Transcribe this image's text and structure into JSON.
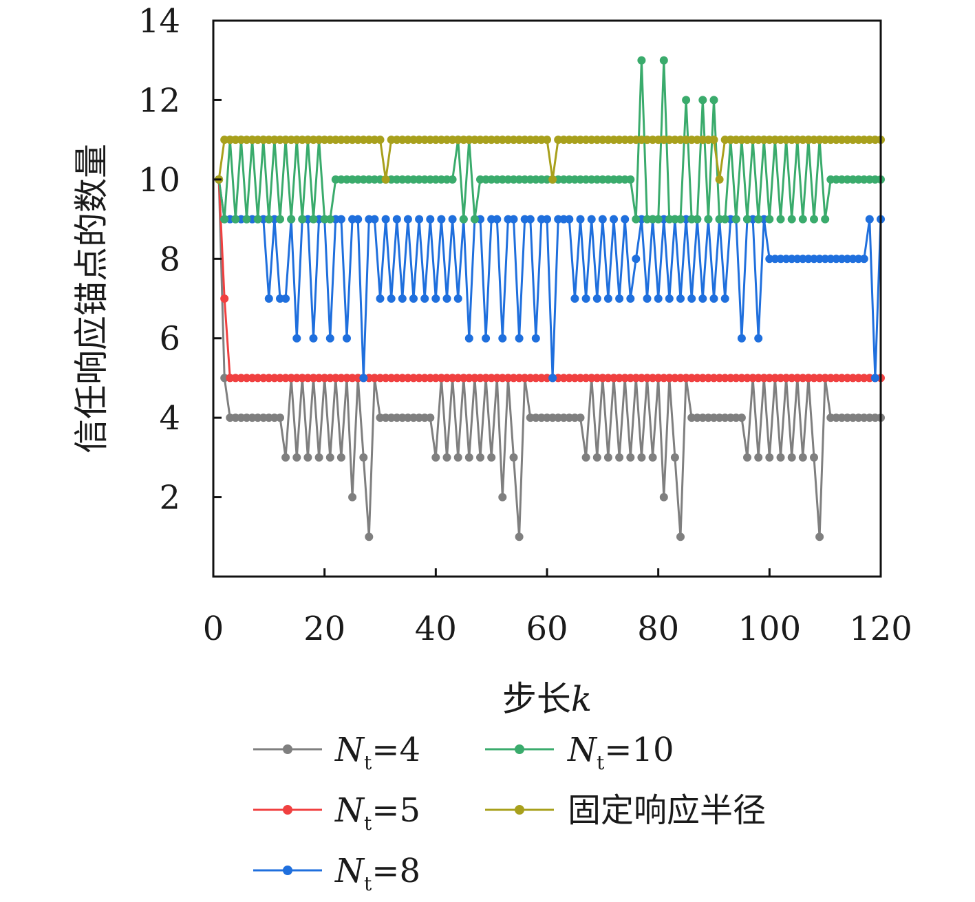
{
  "chart_data": {
    "type": "line",
    "xlabel": "步长",
    "xlabel_var": "k",
    "ylabel": "信任响应锚点的数量",
    "xlim": [
      0,
      120
    ],
    "ylim": [
      0,
      14
    ],
    "x_ticks": [
      0,
      20,
      40,
      60,
      80,
      100,
      120
    ],
    "y_ticks": [
      2,
      4,
      6,
      8,
      10,
      12,
      14
    ],
    "grid": false,
    "legend_position": "bottom",
    "series": [
      {
        "name": "N_t=4",
        "legend": {
          "base": "N",
          "sub": "t",
          "suffix": "=4"
        },
        "color": "#7f7f7f",
        "x": [
          1,
          2,
          3,
          4,
          5,
          6,
          7,
          8,
          9,
          10,
          11,
          12,
          13,
          14,
          15,
          16,
          17,
          18,
          19,
          20,
          21,
          22,
          23,
          24,
          25,
          26,
          27,
          28,
          29,
          30,
          31,
          32,
          33,
          34,
          35,
          36,
          37,
          38,
          39,
          40,
          41,
          42,
          43,
          44,
          45,
          46,
          47,
          48,
          49,
          50,
          51,
          52,
          53,
          54,
          55,
          56,
          57,
          58,
          59,
          60,
          61,
          62,
          63,
          64,
          65,
          66,
          67,
          68,
          69,
          70,
          71,
          72,
          73,
          74,
          75,
          76,
          77,
          78,
          79,
          80,
          81,
          82,
          83,
          84,
          85,
          86,
          87,
          88,
          89,
          90,
          91,
          92,
          93,
          94,
          95,
          96,
          97,
          98,
          99,
          100,
          101,
          102,
          103,
          104,
          105,
          106,
          107,
          108,
          109,
          110,
          111,
          112,
          113,
          114,
          115,
          116,
          117,
          118,
          119,
          120
        ],
        "values": [
          10,
          5,
          4,
          4,
          4,
          4,
          4,
          4,
          4,
          4,
          4,
          4,
          3,
          5,
          3,
          5,
          3,
          5,
          3,
          5,
          3,
          5,
          3,
          5,
          2,
          5,
          3,
          1,
          5,
          4,
          4,
          4,
          4,
          4,
          4,
          4,
          4,
          4,
          4,
          3,
          5,
          3,
          5,
          3,
          5,
          3,
          5,
          3,
          5,
          3,
          5,
          2,
          5,
          3,
          1,
          5,
          4,
          4,
          4,
          4,
          4,
          4,
          4,
          4,
          4,
          4,
          3,
          5,
          3,
          5,
          3,
          5,
          3,
          5,
          3,
          5,
          3,
          5,
          3,
          5,
          2,
          5,
          3,
          1,
          5,
          4,
          4,
          4,
          4,
          4,
          4,
          4,
          4,
          4,
          4,
          3,
          5,
          3,
          5,
          3,
          5,
          3,
          5,
          3,
          5,
          3,
          5,
          3,
          1,
          5,
          4,
          4,
          4,
          4,
          4,
          4,
          4,
          4,
          4,
          4
        ]
      },
      {
        "name": "N_t=5",
        "legend": {
          "base": "N",
          "sub": "t",
          "suffix": "=5"
        },
        "color": "#f04040",
        "x": [
          1,
          2,
          3,
          4,
          5,
          6,
          7,
          8,
          9,
          10,
          11,
          12,
          13,
          14,
          15,
          16,
          17,
          18,
          19,
          20,
          21,
          22,
          23,
          24,
          25,
          26,
          27,
          28,
          29,
          30,
          31,
          32,
          33,
          34,
          35,
          36,
          37,
          38,
          39,
          40,
          41,
          42,
          43,
          44,
          45,
          46,
          47,
          48,
          49,
          50,
          51,
          52,
          53,
          54,
          55,
          56,
          57,
          58,
          59,
          60,
          61,
          62,
          63,
          64,
          65,
          66,
          67,
          68,
          69,
          70,
          71,
          72,
          73,
          74,
          75,
          76,
          77,
          78,
          79,
          80,
          81,
          82,
          83,
          84,
          85,
          86,
          87,
          88,
          89,
          90,
          91,
          92,
          93,
          94,
          95,
          96,
          97,
          98,
          99,
          100,
          101,
          102,
          103,
          104,
          105,
          106,
          107,
          108,
          109,
          110,
          111,
          112,
          113,
          114,
          115,
          116,
          117,
          118,
          119,
          120
        ],
        "values": [
          10,
          7,
          5,
          5,
          5,
          5,
          5,
          5,
          5,
          5,
          5,
          5,
          5,
          5,
          5,
          5,
          5,
          5,
          5,
          5,
          5,
          5,
          5,
          5,
          5,
          5,
          5,
          5,
          5,
          5,
          5,
          5,
          5,
          5,
          5,
          5,
          5,
          5,
          5,
          5,
          5,
          5,
          5,
          5,
          5,
          5,
          5,
          5,
          5,
          5,
          5,
          5,
          5,
          5,
          5,
          5,
          5,
          5,
          5,
          5,
          5,
          5,
          5,
          5,
          5,
          5,
          5,
          5,
          5,
          5,
          5,
          5,
          5,
          5,
          5,
          5,
          5,
          5,
          5,
          5,
          5,
          5,
          5,
          5,
          5,
          5,
          5,
          5,
          5,
          5,
          5,
          5,
          5,
          5,
          5,
          5,
          5,
          5,
          5,
          5,
          5,
          5,
          5,
          5,
          5,
          5,
          5,
          5,
          5,
          5,
          5,
          5,
          5,
          5,
          5,
          5,
          5,
          5,
          5,
          5
        ]
      },
      {
        "name": "N_t=8",
        "legend": {
          "base": "N",
          "sub": "t",
          "suffix": "=8"
        },
        "color": "#1f6fdd",
        "x": [
          1,
          2,
          3,
          4,
          5,
          6,
          7,
          8,
          9,
          10,
          11,
          12,
          13,
          14,
          15,
          16,
          17,
          18,
          19,
          20,
          21,
          22,
          23,
          24,
          25,
          26,
          27,
          28,
          29,
          30,
          31,
          32,
          33,
          34,
          35,
          36,
          37,
          38,
          39,
          40,
          41,
          42,
          43,
          44,
          45,
          46,
          47,
          48,
          49,
          50,
          51,
          52,
          53,
          54,
          55,
          56,
          57,
          58,
          59,
          60,
          61,
          62,
          63,
          64,
          65,
          66,
          67,
          68,
          69,
          70,
          71,
          72,
          73,
          74,
          75,
          76,
          77,
          78,
          79,
          80,
          81,
          82,
          83,
          84,
          85,
          86,
          87,
          88,
          89,
          90,
          91,
          92,
          93,
          94,
          95,
          96,
          97,
          98,
          99,
          100,
          101,
          102,
          103,
          104,
          105,
          106,
          107,
          108,
          109,
          110,
          111,
          112,
          113,
          114,
          115,
          116,
          117,
          118,
          119,
          120
        ],
        "values": [
          10,
          9,
          9,
          9,
          9,
          9,
          9,
          9,
          9,
          7,
          9,
          7,
          7,
          9,
          6,
          9,
          9,
          6,
          9,
          9,
          6,
          9,
          9,
          6,
          9,
          9,
          5,
          9,
          9,
          7,
          9,
          7,
          9,
          7,
          9,
          7,
          9,
          7,
          9,
          7,
          9,
          7,
          9,
          7,
          9,
          6,
          9,
          9,
          6,
          9,
          9,
          6,
          9,
          9,
          6,
          9,
          9,
          6,
          9,
          9,
          5,
          9,
          9,
          9,
          7,
          9,
          7,
          9,
          7,
          9,
          7,
          9,
          7,
          9,
          7,
          8,
          9,
          7,
          9,
          7,
          9,
          7,
          9,
          7,
          9,
          7,
          9,
          7,
          9,
          7,
          9,
          7,
          9,
          9,
          6,
          9,
          9,
          6,
          9,
          8,
          8,
          8,
          8,
          8,
          8,
          8,
          8,
          8,
          8,
          8,
          8,
          8,
          8,
          8,
          8,
          8,
          8,
          9,
          5,
          9
        ]
      },
      {
        "name": "N_t=10",
        "legend": {
          "base": "N",
          "sub": "t",
          "suffix": "=10"
        },
        "color": "#3aab6c",
        "x": [
          1,
          2,
          3,
          4,
          5,
          6,
          7,
          8,
          9,
          10,
          11,
          12,
          13,
          14,
          15,
          16,
          17,
          18,
          19,
          20,
          21,
          22,
          23,
          24,
          25,
          26,
          27,
          28,
          29,
          30,
          31,
          32,
          33,
          34,
          35,
          36,
          37,
          38,
          39,
          40,
          41,
          42,
          43,
          44,
          45,
          46,
          47,
          48,
          49,
          50,
          51,
          52,
          53,
          54,
          55,
          56,
          57,
          58,
          59,
          60,
          61,
          62,
          63,
          64,
          65,
          66,
          67,
          68,
          69,
          70,
          71,
          72,
          73,
          74,
          75,
          76,
          77,
          78,
          79,
          80,
          81,
          82,
          83,
          84,
          85,
          86,
          87,
          88,
          89,
          90,
          91,
          92,
          93,
          94,
          95,
          96,
          97,
          98,
          99,
          100,
          101,
          102,
          103,
          104,
          105,
          106,
          107,
          108,
          109,
          110,
          111,
          112,
          113,
          114,
          115,
          116,
          117,
          118,
          119,
          120
        ],
        "values": [
          10,
          9,
          11,
          9,
          11,
          9,
          11,
          9,
          11,
          9,
          11,
          9,
          11,
          9,
          11,
          9,
          11,
          9,
          11,
          9,
          9,
          10,
          10,
          10,
          10,
          10,
          10,
          10,
          10,
          10,
          10,
          10,
          10,
          10,
          10,
          10,
          10,
          10,
          10,
          10,
          10,
          10,
          10,
          11,
          9,
          11,
          9,
          10,
          10,
          10,
          10,
          10,
          10,
          10,
          10,
          10,
          10,
          10,
          10,
          10,
          10,
          10,
          10,
          10,
          10,
          10,
          10,
          10,
          10,
          10,
          10,
          10,
          10,
          10,
          10,
          9,
          13,
          9,
          9,
          9,
          13,
          9,
          9,
          9,
          12,
          9,
          9,
          12,
          9,
          12,
          9,
          9,
          11,
          9,
          11,
          9,
          11,
          9,
          11,
          9,
          11,
          9,
          11,
          9,
          11,
          9,
          11,
          9,
          11,
          9,
          10,
          10,
          10,
          10,
          10,
          10,
          10,
          10,
          10,
          10
        ]
      },
      {
        "name": "固定响应半径",
        "legend": {
          "base": "固定响应半径",
          "sub": "",
          "suffix": ""
        },
        "color": "#a8a01c",
        "x": [
          1,
          2,
          3,
          4,
          5,
          6,
          7,
          8,
          9,
          10,
          11,
          12,
          13,
          14,
          15,
          16,
          17,
          18,
          19,
          20,
          21,
          22,
          23,
          24,
          25,
          26,
          27,
          28,
          29,
          30,
          31,
          32,
          33,
          34,
          35,
          36,
          37,
          38,
          39,
          40,
          41,
          42,
          43,
          44,
          45,
          46,
          47,
          48,
          49,
          50,
          51,
          52,
          53,
          54,
          55,
          56,
          57,
          58,
          59,
          60,
          61,
          62,
          63,
          64,
          65,
          66,
          67,
          68,
          69,
          70,
          71,
          72,
          73,
          74,
          75,
          76,
          77,
          78,
          79,
          80,
          81,
          82,
          83,
          84,
          85,
          86,
          87,
          88,
          89,
          90,
          91,
          92,
          93,
          94,
          95,
          96,
          97,
          98,
          99,
          100,
          101,
          102,
          103,
          104,
          105,
          106,
          107,
          108,
          109,
          110,
          111,
          112,
          113,
          114,
          115,
          116,
          117,
          118,
          119,
          120
        ],
        "values": [
          10,
          11,
          11,
          11,
          11,
          11,
          11,
          11,
          11,
          11,
          11,
          11,
          11,
          11,
          11,
          11,
          11,
          11,
          11,
          11,
          11,
          11,
          11,
          11,
          11,
          11,
          11,
          11,
          11,
          11,
          10,
          11,
          11,
          11,
          11,
          11,
          11,
          11,
          11,
          11,
          11,
          11,
          11,
          11,
          11,
          11,
          11,
          11,
          11,
          11,
          11,
          11,
          11,
          11,
          11,
          11,
          11,
          11,
          11,
          11,
          10,
          11,
          11,
          11,
          11,
          11,
          11,
          11,
          11,
          11,
          11,
          11,
          11,
          11,
          11,
          11,
          11,
          11,
          11,
          11,
          11,
          11,
          11,
          11,
          11,
          11,
          11,
          11,
          11,
          11,
          10,
          11,
          11,
          11,
          11,
          11,
          11,
          11,
          11,
          11,
          11,
          11,
          11,
          11,
          11,
          11,
          11,
          11,
          11,
          11,
          11,
          11,
          11,
          11,
          11,
          11,
          11,
          11,
          11,
          11
        ]
      }
    ]
  }
}
